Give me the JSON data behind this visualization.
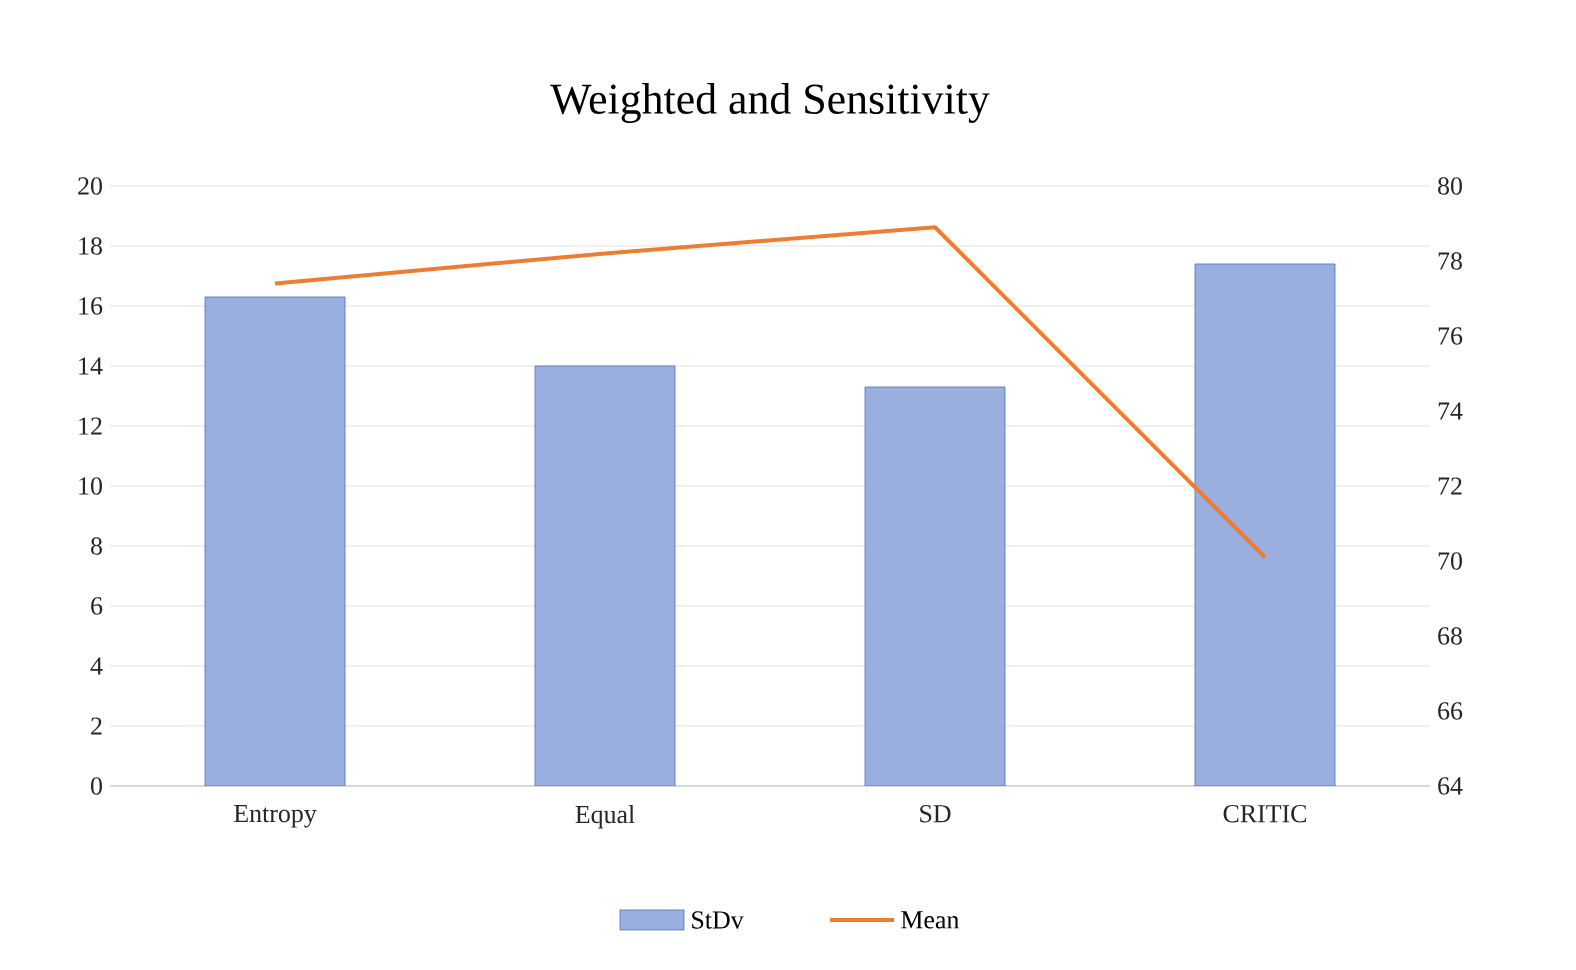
{
  "chart_data": {
    "type": "bar",
    "title": "Weighted and Sensitivity",
    "categories": [
      "Entropy",
      "Equal",
      "SD",
      "CRITIC"
    ],
    "series": [
      {
        "name": "StDv",
        "color": "#9aafe0",
        "values": [
          16.3,
          14.0,
          13.3,
          17.4
        ]
      },
      {
        "name": "Mean",
        "type": "line",
        "axis": "y2",
        "color": "#ed7d31",
        "values": [
          77.4,
          78.2,
          78.9,
          70.1
        ]
      }
    ],
    "ylim": [
      0,
      20
    ],
    "yticks": [
      0,
      2,
      4,
      6,
      8,
      10,
      12,
      14,
      16,
      18,
      20
    ],
    "y2lim": [
      64,
      80
    ],
    "y2ticks": [
      64,
      66,
      68,
      70,
      72,
      74,
      76,
      78,
      80
    ],
    "grid": "y",
    "legend": "bottom",
    "marker": "none"
  }
}
